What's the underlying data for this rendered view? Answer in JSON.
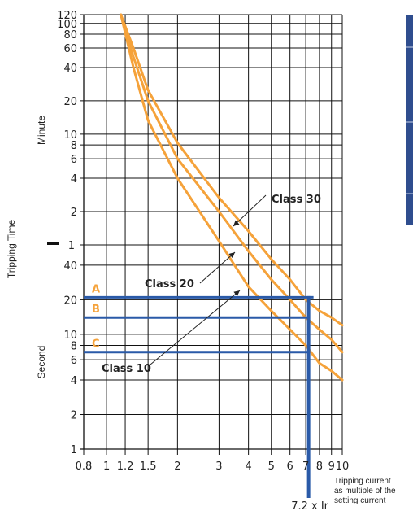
{
  "chart_data": {
    "type": "line",
    "xlabel": "Tripping current as multiple of the setting current",
    "ylabel": "Tripping Time",
    "ylabel_upper_unit": "Minute",
    "ylabel_lower_unit": "Second",
    "x_scale": "log",
    "xlim": [
      0.8,
      10
    ],
    "x_ticks": [
      "0.8",
      "1",
      "1.2",
      "1.5",
      "2",
      "3",
      "4",
      "5",
      "6",
      "7",
      "8",
      "9",
      "10"
    ],
    "y_scale": "log",
    "y_ticks_minute": [
      "120",
      "100",
      "80",
      "60",
      "40",
      "20",
      "10",
      "8",
      "6",
      "4",
      "2",
      "1"
    ],
    "y_ticks_second": [
      "40",
      "20",
      "10",
      "8",
      "6",
      "4",
      "2",
      "1"
    ],
    "grid": true,
    "series": [
      {
        "name": "Class 10",
        "color": "#f5a23a",
        "x": [
          1.15,
          1.3,
          1.5,
          2,
          3,
          4,
          5,
          6,
          7,
          8,
          9,
          10
        ],
        "y_seconds": [
          7200,
          2400,
          800,
          240,
          65,
          26,
          16,
          11,
          8,
          5.6,
          4.8,
          4
        ]
      },
      {
        "name": "Class 20",
        "color": "#f5a23a",
        "x": [
          1.15,
          1.3,
          1.5,
          2,
          3,
          4,
          5,
          6,
          7,
          8,
          9,
          10
        ],
        "y_seconds": [
          7200,
          3000,
          1200,
          360,
          120,
          53,
          30,
          20,
          14,
          11,
          9,
          7
        ]
      },
      {
        "name": "Class 30",
        "color": "#f5a23a",
        "x": [
          1.15,
          1.3,
          1.5,
          2,
          3,
          4,
          5,
          6,
          7,
          8,
          9,
          10
        ],
        "y_seconds": [
          7200,
          3600,
          1500,
          500,
          160,
          80,
          45,
          30,
          20,
          16,
          14,
          12
        ]
      }
    ],
    "markers": [
      {
        "label": "A",
        "y_seconds": 21
      },
      {
        "label": "B",
        "y_seconds": 14
      },
      {
        "label": "C",
        "y_seconds": 7
      }
    ],
    "vline": {
      "x": 7.2,
      "label": "7.2 x Ir"
    },
    "class_labels": [
      "Class 30",
      "Class 20",
      "Class 10"
    ]
  }
}
